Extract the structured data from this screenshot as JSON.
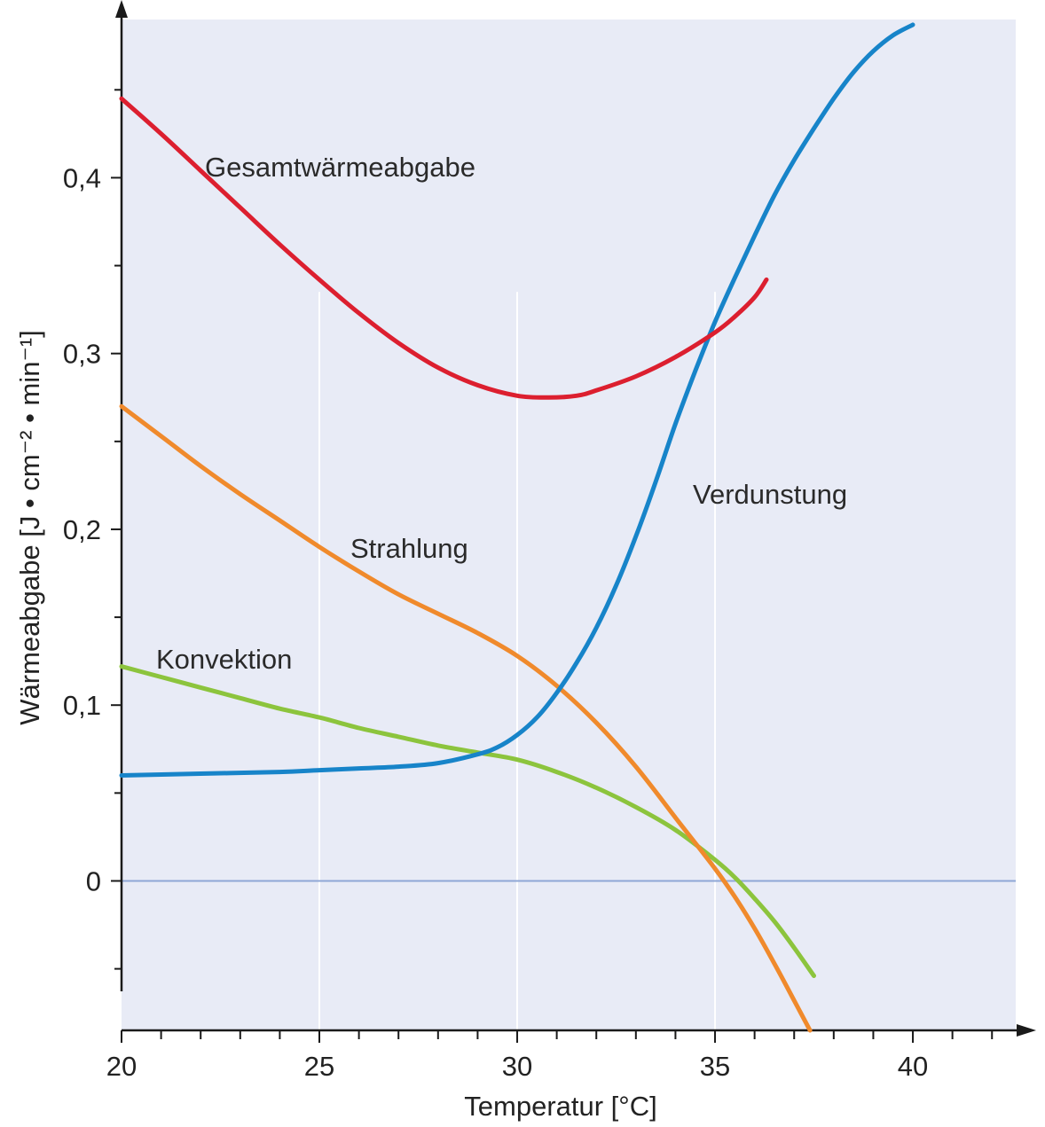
{
  "chart_data": {
    "type": "line",
    "xlabel": "Temperatur [°C]",
    "ylabel": "Wärmeabgabe [J • cm⁻² • min⁻¹]",
    "xlim": [
      20,
      42.6
    ],
    "ylim": [
      -0.085,
      0.49
    ],
    "x_ticks": [
      "20",
      "25",
      "30",
      "35",
      "40"
    ],
    "y_ticks": [
      "0",
      "0,1",
      "0,2",
      "0,3",
      "0,4"
    ],
    "grid": "vertical lines at 25, 30 and 35; horizontal line at 0",
    "colors": {
      "background": "#e8ebf6",
      "grid": "#ffffff",
      "zero_line": "#8fa7d6"
    },
    "series": [
      {
        "name": "Gesamtwärmeabgabe",
        "color": "#dc1f2f",
        "x": [
          20,
          21,
          22,
          23,
          24,
          25,
          26,
          27,
          28,
          29,
          30,
          30.8,
          31.5,
          32,
          33,
          34,
          35,
          35.5,
          36,
          36.3
        ],
        "y": [
          0.445,
          0.425,
          0.404,
          0.383,
          0.362,
          0.342,
          0.323,
          0.306,
          0.292,
          0.282,
          0.276,
          0.275,
          0.276,
          0.279,
          0.287,
          0.298,
          0.312,
          0.321,
          0.332,
          0.342
        ]
      },
      {
        "name": "Strahlung",
        "color": "#f08a2c",
        "x": [
          20,
          21,
          22,
          23,
          24,
          25,
          26,
          27,
          28,
          29,
          30,
          31,
          32,
          33,
          34,
          35,
          35.5,
          36,
          36.5,
          37,
          37.4
        ],
        "y": [
          0.27,
          0.253,
          0.236,
          0.22,
          0.205,
          0.19,
          0.176,
          0.163,
          0.152,
          0.141,
          0.128,
          0.111,
          0.09,
          0.065,
          0.036,
          0.007,
          -0.009,
          -0.027,
          -0.047,
          -0.068,
          -0.085
        ]
      },
      {
        "name": "Konvektion",
        "color": "#8cc43d",
        "x": [
          20,
          21,
          22,
          23,
          24,
          25,
          26,
          27,
          28,
          29,
          30,
          31,
          32,
          33,
          34,
          35,
          35.5,
          36,
          36.5,
          37,
          37.5
        ],
        "y": [
          0.122,
          0.116,
          0.11,
          0.104,
          0.098,
          0.093,
          0.087,
          0.082,
          0.077,
          0.073,
          0.069,
          0.062,
          0.053,
          0.042,
          0.029,
          0.012,
          0.002,
          -0.01,
          -0.023,
          -0.038,
          -0.054
        ]
      },
      {
        "name": "Verdunstung",
        "color": "#1784c9",
        "x": [
          20,
          22,
          24,
          25,
          26,
          27,
          28,
          29,
          29.5,
          30,
          30.5,
          31,
          31.5,
          32,
          32.5,
          33,
          33.5,
          34,
          34.5,
          35,
          35.5,
          36,
          36.5,
          37,
          37.5,
          38,
          38.5,
          39,
          39.5,
          40
        ],
        "y": [
          0.06,
          0.061,
          0.062,
          0.063,
          0.064,
          0.065,
          0.067,
          0.072,
          0.076,
          0.083,
          0.093,
          0.107,
          0.124,
          0.144,
          0.168,
          0.196,
          0.227,
          0.26,
          0.29,
          0.318,
          0.343,
          0.367,
          0.39,
          0.41,
          0.428,
          0.445,
          0.46,
          0.472,
          0.481,
          0.487
        ]
      }
    ]
  }
}
